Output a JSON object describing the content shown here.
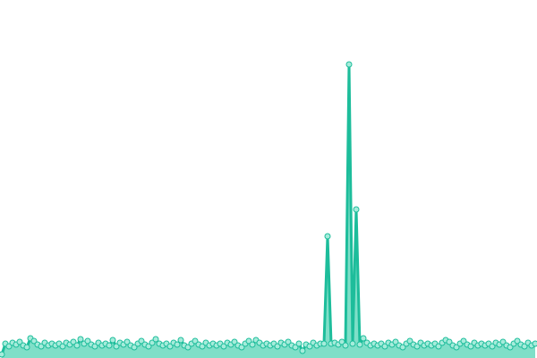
{
  "chart_data": {
    "type": "area",
    "values": [
      4,
      16,
      13,
      17,
      15,
      18,
      14,
      12,
      22,
      19,
      15,
      13,
      17,
      14,
      16,
      14,
      16,
      13,
      17,
      15,
      18,
      14,
      21,
      16,
      19,
      15,
      13,
      17,
      14,
      16,
      14,
      20,
      13,
      17,
      15,
      18,
      14,
      12,
      16,
      19,
      15,
      13,
      17,
      21,
      16,
      14,
      16,
      13,
      17,
      15,
      20,
      14,
      12,
      16,
      19,
      15,
      13,
      17,
      14,
      16,
      14,
      16,
      13,
      17,
      15,
      18,
      14,
      12,
      16,
      19,
      15,
      20,
      17,
      14,
      16,
      14,
      16,
      13,
      17,
      15,
      18,
      14,
      12,
      16,
      8,
      15,
      13,
      17,
      14,
      16,
      16,
      136,
      16,
      17,
      15,
      18,
      14,
      328,
      16,
      166,
      15,
      22,
      17,
      14,
      16,
      14,
      16,
      13,
      17,
      15,
      18,
      14,
      12,
      16,
      19,
      15,
      13,
      17,
      14,
      16,
      14,
      16,
      13,
      17,
      20,
      18,
      14,
      12,
      16,
      19,
      15,
      13,
      17,
      14,
      16,
      14,
      16,
      13,
      17,
      15,
      18,
      14,
      12,
      16,
      19,
      15,
      13,
      17,
      14,
      16
    ],
    "ylim": [
      0,
      400
    ],
    "color": "#1dbd9b",
    "area_color": "#7fdfc8",
    "marker_color": "#a6ecdb"
  }
}
